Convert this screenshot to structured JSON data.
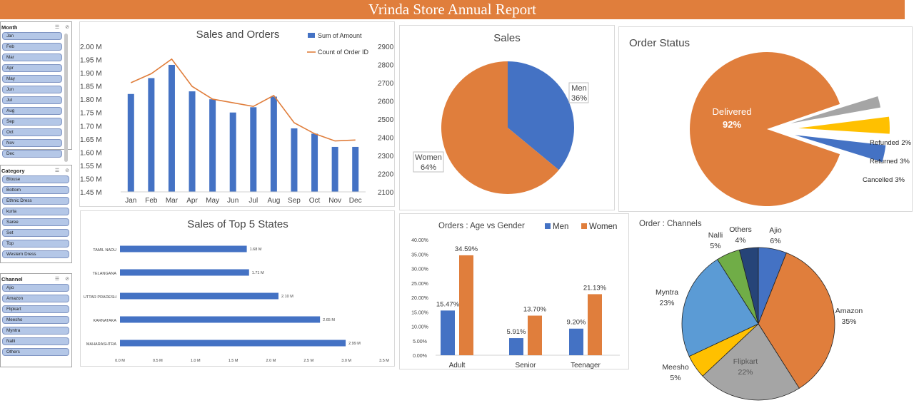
{
  "report_title": "Vrinda Store Annual Report",
  "slicers": {
    "month": {
      "title": "Month",
      "items": [
        "Jan",
        "Feb",
        "Mar",
        "Apr",
        "May",
        "Jun",
        "Jul",
        "Aug",
        "Sep",
        "Oct",
        "Nov",
        "Dec"
      ]
    },
    "category": {
      "title": "Category",
      "items": [
        "Blouse",
        "Bottom",
        "Ethnic Dress",
        "kurta",
        "Saree",
        "Set",
        "Top",
        "Western Dress"
      ]
    },
    "channel": {
      "title": "Channel",
      "items": [
        "Ajio",
        "Amazon",
        "Flipkart",
        "Meesho",
        "Myntra",
        "Nalli",
        "Others"
      ]
    },
    "icons": {
      "multiselect": "multiselect-icon",
      "clear_filter": "clear-filter-icon"
    }
  },
  "colors": {
    "blue": "#4472c4",
    "orange": "#e07e3c",
    "gray": "#a5a5a5",
    "gold": "#ffc000",
    "lightblue": "#5b9bd5",
    "green": "#70ad47",
    "navy": "#264478"
  },
  "chart_data": [
    {
      "id": "sales_orders",
      "type": "bar+line",
      "title": "Sales and Orders",
      "categories": [
        "Jan",
        "Feb",
        "Mar",
        "Apr",
        "May",
        "Jun",
        "Jul",
        "Aug",
        "Sep",
        "Oct",
        "Nov",
        "Dec"
      ],
      "series": [
        {
          "name": "Sum of Amount",
          "type": "bar",
          "axis": "left",
          "values": [
            1.82,
            1.88,
            1.93,
            1.83,
            1.8,
            1.75,
            1.77,
            1.81,
            1.69,
            1.67,
            1.62,
            1.62
          ]
        },
        {
          "name": "Count of Order ID",
          "type": "line",
          "axis": "right",
          "values": [
            2700,
            2750,
            2830,
            2680,
            2610,
            2590,
            2570,
            2630,
            2480,
            2420,
            2380,
            2385
          ]
        }
      ],
      "y_left_ticks": [
        "1.45 M",
        "1.50 M",
        "1.55 M",
        "1.60 M",
        "1.65 M",
        "1.70 M",
        "1.75 M",
        "1.80 M",
        "1.85 M",
        "1.90 M",
        "1.95 M",
        "2.00 M"
      ],
      "y_left_range": [
        1.45,
        2.0
      ],
      "y_right_ticks": [
        "2100",
        "2200",
        "2300",
        "2400",
        "2500",
        "2600",
        "2700",
        "2800",
        "2900"
      ],
      "y_right_range": [
        2100,
        2900
      ],
      "legend_position": "top-right"
    },
    {
      "id": "sales_gender",
      "type": "pie",
      "title": "Sales",
      "labels": [
        "Men",
        "Women"
      ],
      "values": [
        36,
        64
      ],
      "value_labels": [
        "36%",
        "64%"
      ]
    },
    {
      "id": "order_status",
      "type": "pie",
      "title": "Order Status",
      "labels": [
        "Delivered",
        "Refunded",
        "Returned",
        "Cancelled"
      ],
      "values": [
        92,
        2,
        3,
        3
      ],
      "value_labels": [
        "92%",
        "2%",
        "3%",
        "3%"
      ]
    },
    {
      "id": "top_states",
      "type": "bar",
      "orientation": "horizontal",
      "title": "Sales of Top 5 States",
      "categories": [
        "TAMIL NADU",
        "TELANGANA",
        "UTTAR PRADESH",
        "KARNATAKA",
        "MAHARASHTRA"
      ],
      "values": [
        1.68,
        1.71,
        2.1,
        2.65,
        2.99
      ],
      "value_labels": [
        "1.68 M",
        "1.71 M",
        "2.10 M",
        "2.65 M",
        "2.99 M"
      ],
      "x_ticks": [
        "0.0 M",
        "0.5 M",
        "1.0 M",
        "1.5 M",
        "2.0 M",
        "2.5 M",
        "3.0 M",
        "3.5 M"
      ],
      "x_range": [
        0,
        3.5
      ]
    },
    {
      "id": "age_gender",
      "type": "bar",
      "title": "Orders : Age vs Gender",
      "categories": [
        "Adult",
        "Senior",
        "Teenager"
      ],
      "series": [
        {
          "name": "Men",
          "values": [
            15.47,
            5.91,
            9.2
          ],
          "value_labels": [
            "15.47%",
            "5.91%",
            "9.20%"
          ]
        },
        {
          "name": "Women",
          "values": [
            34.59,
            13.7,
            21.13
          ],
          "value_labels": [
            "34.59%",
            "13.70%",
            "21.13%"
          ]
        }
      ],
      "y_ticks": [
        "0.00%",
        "5.00%",
        "10.00%",
        "15.00%",
        "20.00%",
        "25.00%",
        "30.00%",
        "35.00%",
        "40.00%"
      ],
      "y_range": [
        0,
        40
      ],
      "legend_position": "top-right"
    },
    {
      "id": "channels",
      "type": "pie",
      "title": "Order : Channels",
      "labels": [
        "Ajio",
        "Amazon",
        "Flipkart",
        "Meesho",
        "Myntra",
        "Nalli",
        "Others"
      ],
      "values": [
        6,
        35,
        22,
        5,
        23,
        5,
        4
      ],
      "value_labels": [
        "6%",
        "35%",
        "22%",
        "5%",
        "23%",
        "5%",
        "4%"
      ]
    }
  ]
}
